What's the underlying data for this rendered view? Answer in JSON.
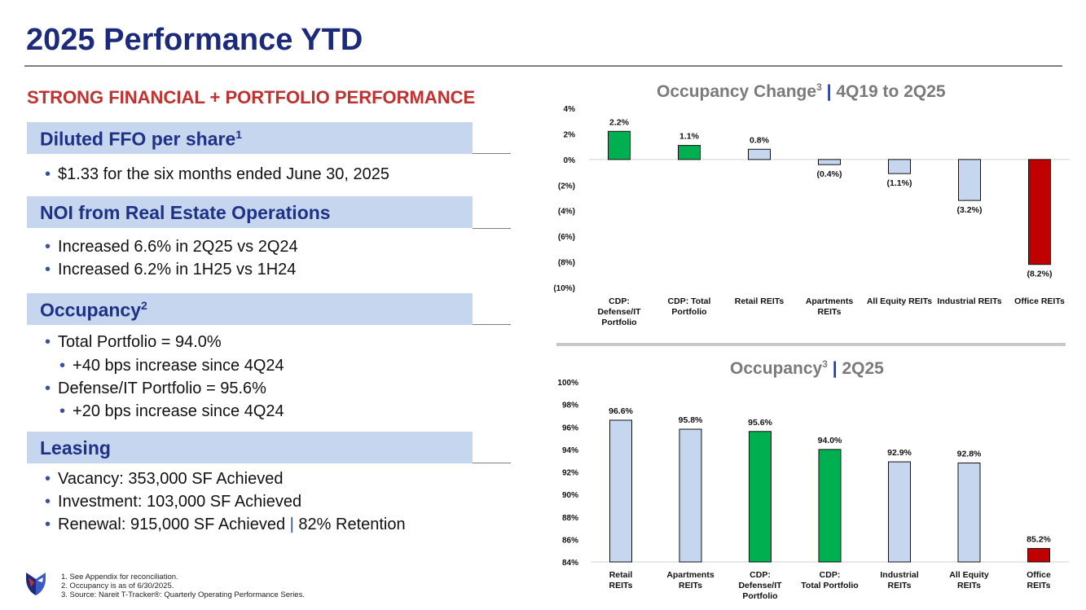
{
  "page": {
    "title": "2025 Performance YTD",
    "subtitle": "STRONG FINANCIAL + PORTFOLIO PERFORMANCE"
  },
  "sections": {
    "ffo": {
      "label": "Diluted FFO per share",
      "sup": "1",
      "bullets": [
        "$1.33 for the six months ended June 30, 2025"
      ]
    },
    "noi": {
      "label": "NOI from Real Estate Operations",
      "bullets": [
        "Increased 6.6% in 2Q25 vs 2Q24",
        "Increased 6.2% in 1H25 vs 1H24"
      ]
    },
    "occupancy": {
      "label": "Occupancy",
      "sup": "2",
      "bullets": [
        "Total Portfolio = 94.0%",
        "+40 bps increase since 4Q24",
        "Defense/IT Portfolio = 95.6%",
        "+20 bps increase since 4Q24"
      ]
    },
    "leasing": {
      "label": "Leasing",
      "bullets": [
        "Vacancy: 353,000 SF Achieved",
        "Investment: 103,000 SF Achieved",
        "Renewal: 915,000 SF Achieved",
        "|",
        "82% Retention"
      ]
    }
  },
  "footnotes": [
    "1. See Appendix for reconciliation.",
    "2. Occupancy is as of 6/30/2025.",
    "3. Source: Nareit T-Tracker®: Quarterly Operating Performance Series."
  ],
  "colors": {
    "title": "#1b2a7a",
    "accent_red": "#c0312f",
    "header_fill": "#c5d6ee",
    "bar_green": "#00b050",
    "bar_blue": "#c5d6ee",
    "bar_red": "#c00000"
  },
  "chart_titles": {
    "change": {
      "main": "Occupancy Change",
      "sup": "3",
      "pipe": "|",
      "period": "4Q19 to 2Q25"
    },
    "level": {
      "main": "Occupancy",
      "sup": "3",
      "pipe": "|",
      "period": "2Q25"
    }
  },
  "chart_data": [
    {
      "type": "bar",
      "title": "Occupancy Change3 | 4Q19 to 2Q25",
      "categories": [
        [
          "CDP:",
          "Defense/IT",
          "Portfolio"
        ],
        [
          "CDP:  Total",
          "Portfolio"
        ],
        [
          "Retail   REITs"
        ],
        [
          "Apartments",
          "REITs"
        ],
        [
          "All Equity REITs"
        ],
        [
          "Industrial REITs"
        ],
        [
          "Office   REITs"
        ]
      ],
      "values": [
        2.2,
        1.1,
        0.8,
        -0.4,
        -1.1,
        -3.2,
        -8.2
      ],
      "data_labels": [
        "2.2%",
        "1.1%",
        "0.8%",
        "(0.4%)",
        "(1.1%)",
        "(3.2%)",
        "(8.2%)"
      ],
      "bar_colors": [
        "green",
        "green",
        "blue",
        "blue",
        "blue",
        "blue",
        "red"
      ],
      "ylim": [
        -10,
        4
      ],
      "yticks": [
        4,
        2,
        0,
        -2,
        -4,
        -6,
        -8,
        -10
      ],
      "ytick_labels": [
        "4%",
        "2%",
        "0%",
        "(2%)",
        "(4%)",
        "(6%)",
        "(8%)",
        "(10%)"
      ],
      "xlabel": "",
      "ylabel": ""
    },
    {
      "type": "bar",
      "title": "Occupancy3 | 2Q25",
      "categories": [
        [
          "Retail",
          "REITs"
        ],
        [
          "Apartments",
          "REITs"
        ],
        [
          "CDP:",
          "Defense/IT",
          "Portfolio"
        ],
        [
          "CDP:",
          "Total Portfolio"
        ],
        [
          "Industrial",
          "REITs"
        ],
        [
          "All Equity",
          "REITs"
        ],
        [
          "Office",
          "REITs"
        ]
      ],
      "values": [
        96.6,
        95.8,
        95.6,
        94.0,
        92.9,
        92.8,
        85.2
      ],
      "data_labels": [
        "96.6%",
        "95.8%",
        "95.6%",
        "94.0%",
        "92.9%",
        "92.8%",
        "85.2%"
      ],
      "bar_colors": [
        "blue",
        "blue",
        "green",
        "green",
        "blue",
        "blue",
        "red"
      ],
      "ylim": [
        84,
        100
      ],
      "yticks": [
        100,
        98,
        96,
        94,
        92,
        90,
        88,
        86,
        84
      ],
      "ytick_labels": [
        "100%",
        "98%",
        "96%",
        "94%",
        "92%",
        "90%",
        "88%",
        "86%",
        "84%"
      ],
      "xlabel": "",
      "ylabel": ""
    }
  ]
}
